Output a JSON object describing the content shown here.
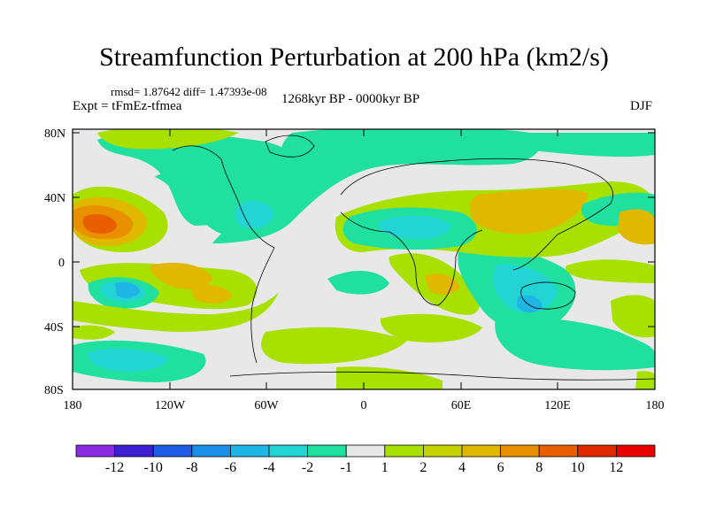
{
  "title": "Streamfunction Perturbation at 200 hPa (km2/s)",
  "stats": "rmsd= 1.87642  diff= 1.47393e-08",
  "experiment": "Expt = tFmEz-tfmea",
  "period": "1268kyr BP - 0000kyr BP",
  "season": "DJF",
  "lat_ticks": [
    "80N",
    "40N",
    "0",
    "40S",
    "80S"
  ],
  "lon_ticks": [
    "180",
    "120W",
    "60W",
    "0",
    "60E",
    "120E",
    "180"
  ],
  "colorbar": {
    "labels": [
      "-12",
      "-10",
      "-8",
      "-6",
      "-4",
      "-2",
      "-1",
      "1",
      "2",
      "4",
      "6",
      "8",
      "10",
      "12"
    ],
    "colors": [
      "#8a2be2",
      "#3b1fd0",
      "#1e5be6",
      "#1a8ee8",
      "#1fb6e6",
      "#22d4d4",
      "#20e0a0",
      "#e8e8e8",
      "#a8e000",
      "#c4d400",
      "#e0b800",
      "#e89000",
      "#e85e00",
      "#e02800",
      "#e80000"
    ]
  },
  "colors": {
    "neutral": "#e8e8e8",
    "pos_weak": "#a8e000",
    "pos_mid": "#e0b800",
    "pos_strong": "#e89000",
    "pos_peak": "#e85e00",
    "neg_weak": "#20e0a0",
    "neg_mid": "#22d4d4",
    "neg_strong": "#1fb6e6",
    "neg_peak": "#1a8ee8"
  }
}
